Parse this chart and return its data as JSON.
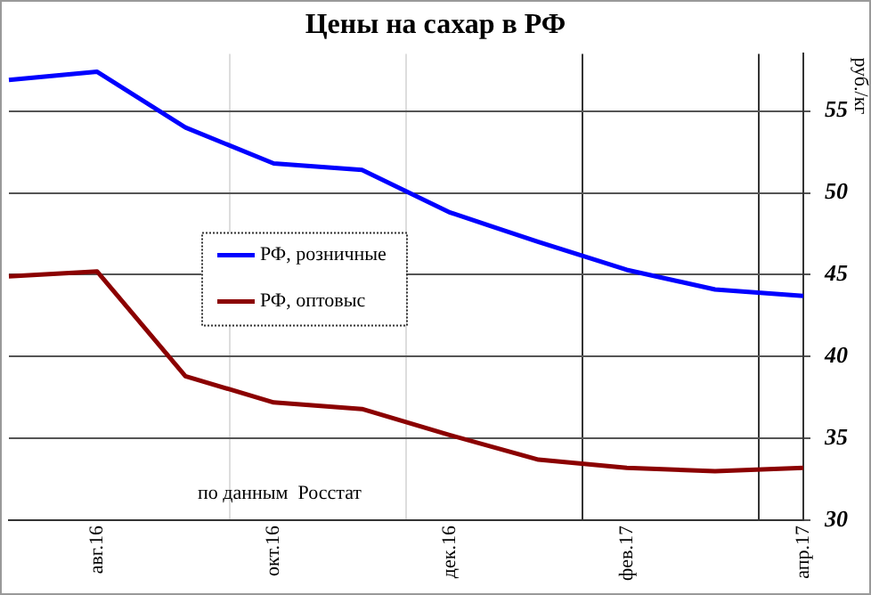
{
  "chart_data": {
    "type": "line",
    "title": "Цены на сахар в РФ",
    "ylabel": "руб./кг",
    "categories": [
      null,
      "авг.16",
      null,
      "окт.16",
      null,
      "дек.16",
      null,
      "фев.17",
      null,
      "апр.17"
    ],
    "ylim": [
      30,
      58.5
    ],
    "yticks": [
      30,
      35,
      40,
      45,
      50,
      55
    ],
    "series": [
      {
        "name": "РФ, розничные",
        "color": "#0000ff",
        "values": [
          56.9,
          57.4,
          54.0,
          51.8,
          51.4,
          48.8,
          47.0,
          45.3,
          44.1,
          43.7
        ]
      },
      {
        "name": "РФ, оптовыс",
        "color": "#8b0000",
        "values": [
          44.9,
          45.2,
          38.8,
          37.2,
          36.8,
          35.2,
          33.7,
          33.2,
          33.0,
          33.2
        ]
      }
    ],
    "annotations": [
      "по данным  Росстат"
    ],
    "grid": true,
    "legend": "left",
    "marker": "none",
    "line_style": "solid"
  }
}
